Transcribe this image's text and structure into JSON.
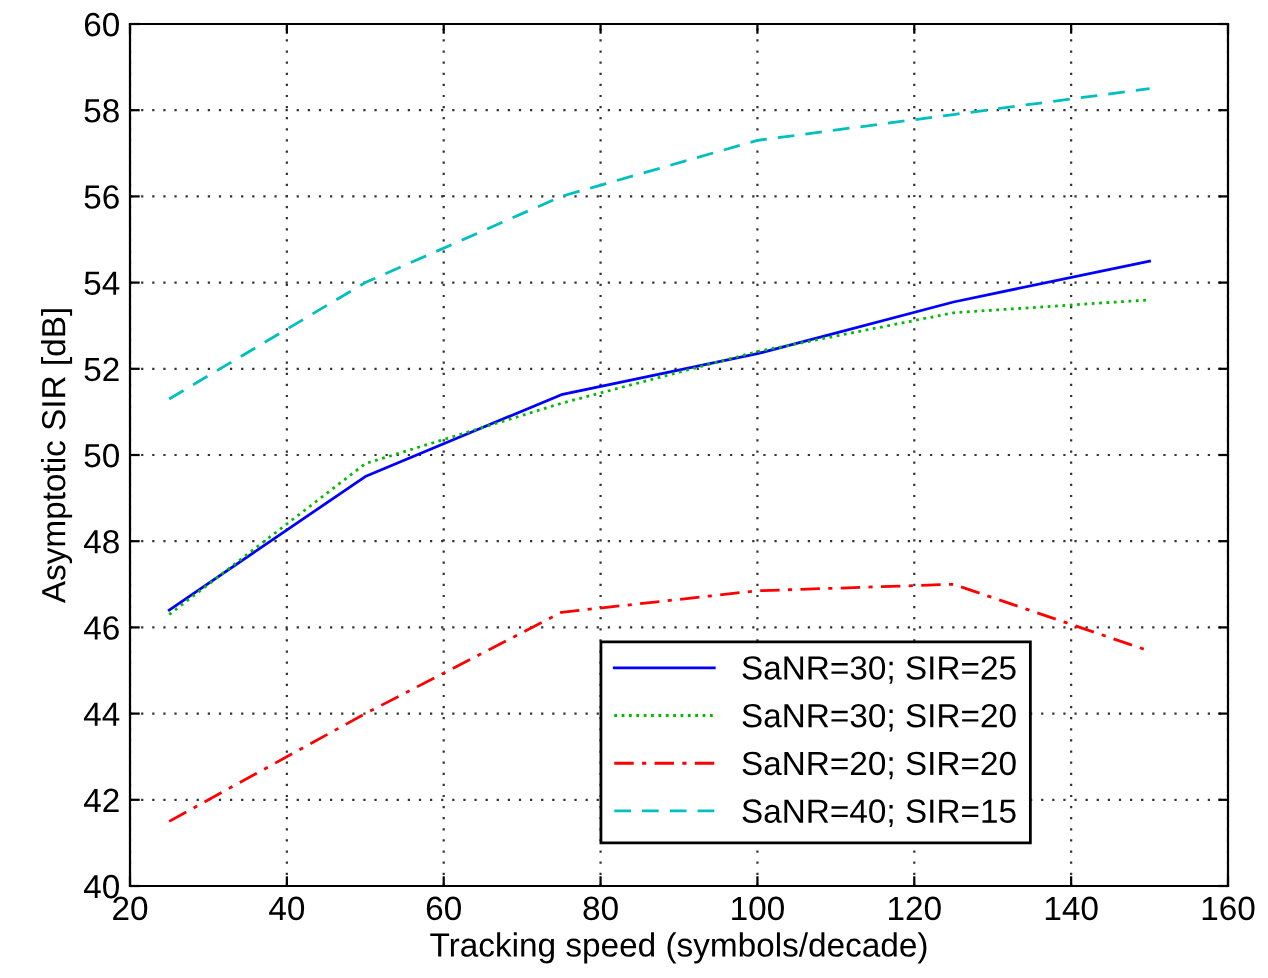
{
  "chart_data": {
    "type": "line",
    "xlabel": "Tracking speed (symbols/decade)",
    "ylabel": "Asymptotic SIR [dB]",
    "x": [
      25,
      50,
      75,
      100,
      125,
      150
    ],
    "series": [
      {
        "name": "SaNR=30; SIR=25",
        "color": "#0000ff",
        "line_style": "solid",
        "values": [
          46.4,
          49.5,
          51.4,
          52.35,
          53.55,
          54.5
        ]
      },
      {
        "name": "SaNR=30; SIR=20",
        "color": "#00bb00",
        "line_style": "dotted",
        "values": [
          46.3,
          49.8,
          51.2,
          52.4,
          53.3,
          53.6
        ]
      },
      {
        "name": "SaNR=20; SIR=20",
        "color": "#ff0000",
        "line_style": "dashdot",
        "values": [
          41.5,
          44.0,
          46.35,
          46.85,
          47.0,
          45.45
        ]
      },
      {
        "name": "SaNR=40; SIR=15",
        "color": "#00bfbf",
        "line_style": "dashed",
        "values": [
          51.3,
          54.0,
          56.0,
          57.3,
          57.9,
          58.5
        ]
      }
    ],
    "xlim": [
      20,
      160
    ],
    "xticks": [
      20,
      40,
      60,
      80,
      100,
      120,
      140,
      160
    ],
    "ylim": [
      40,
      60
    ],
    "yticks": [
      40,
      42,
      44,
      46,
      48,
      50,
      52,
      54,
      56,
      58,
      60
    ],
    "grid": true,
    "legend": "bottom right",
    "marker": "none"
  }
}
